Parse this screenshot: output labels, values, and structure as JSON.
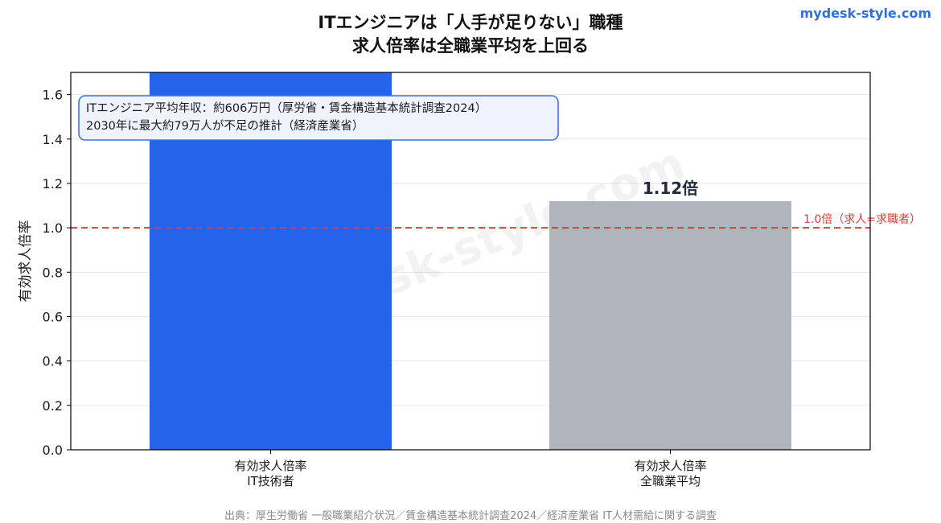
{
  "header": {
    "title_line1": "ITエンジニアは「人手が足りない」職種",
    "title_line2": "求人倍率は全職業平均を上回る",
    "brand": "mydesk-style.com"
  },
  "footer": {
    "source": "出典：厚生労働省 一般職業紹介状況／賃金構造基本統計調査2024／経済産業省 IT人材需給に関する調査"
  },
  "annotation": {
    "line1": "ITエンジニア平均年収：約606万円（厚労省・賃金構造基本統計調査2024）",
    "line2": "2030年に最大約79万人が不足の推計（経済産業省）"
  },
  "watermark": "mydesk-style.com",
  "colors": {
    "it_bar": "#2563eb",
    "avg_bar": "#b0b5bd",
    "reference_line": "#dc3c3c",
    "annotation_border": "#3b74d9",
    "annotation_bg": "#eef3fd"
  },
  "chart_data": {
    "type": "bar",
    "title": "ITエンジニアは「人手が足りない」職種 求人倍率は全職業平均を上回る",
    "ylabel": "有効求人倍率",
    "xlabel": "",
    "ylim": [
      0,
      1.7
    ],
    "yticks": [
      "0.0",
      "0.2",
      "0.4",
      "0.6",
      "0.8",
      "1.0",
      "1.2",
      "1.4",
      "1.6"
    ],
    "grid": true,
    "categories": [
      [
        "有効求人倍率",
        "IT技術者"
      ],
      [
        "有効求人倍率",
        "全職業平均"
      ]
    ],
    "values": [
      1.7,
      1.12
    ],
    "value_labels": [
      "",
      "1.12倍"
    ],
    "reference_line": {
      "value": 1.0,
      "label": "1.0倍（求人=求職者）"
    }
  }
}
